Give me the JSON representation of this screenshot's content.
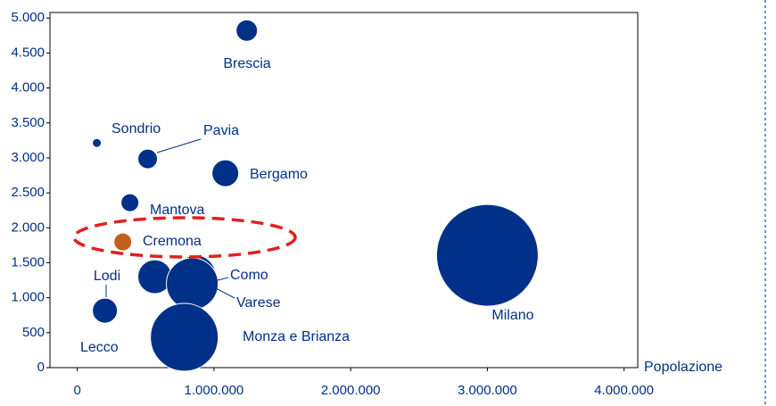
{
  "chart_data": {
    "type": "bubble",
    "x_label": "Popolazione",
    "labels": [
      "Brescia",
      "Sondrio",
      "Pavia",
      "Bergamo",
      "Mantova",
      "Cremona",
      "Lodi",
      "Lecco",
      "Como",
      "Varese",
      "Monza e Brianza",
      "Milano"
    ],
    "x": [
      1240000,
      143000,
      515000,
      1083000,
      385000,
      333000,
      202000,
      567000,
      868000,
      841000,
      783000,
      3000000
    ],
    "values": [
      4821,
      3214,
      2985,
      2781,
      2360,
      1798,
      816,
      1301,
      1327,
      1199,
      434,
      1607
    ],
    "sizes": [
      144,
      25,
      121,
      225,
      100,
      100,
      196,
      361,
      484,
      841,
      1444,
      3249
    ],
    "colors": [
      "#003087",
      "#003087",
      "#003087",
      "#003087",
      "#003087",
      "#c0601a",
      "#003087",
      "#003087",
      "#003087",
      "#003087",
      "#003087",
      "#003087"
    ],
    "xlim": [
      -200000,
      4100000
    ],
    "xticks": [
      0,
      {
        "value": 1000000,
        "label": "1.000.000"
      },
      {
        "value": 2000000,
        "label": "2.000.000"
      },
      {
        "value": 3000000,
        "label": "3.000.000"
      },
      {
        "value": 4000000,
        "label": "4.000.000"
      }
    ],
    "ylim": [
      0,
      5080
    ],
    "yticks": [
      0,
      500,
      {
        "value": 1000,
        "label": "1.000"
      },
      {
        "value": 1500,
        "label": "1.500"
      },
      {
        "value": 2000,
        "label": "2.000"
      },
      {
        "value": 2500,
        "label": "2.500"
      },
      {
        "value": 3000,
        "label": "3.000"
      },
      {
        "value": 3500,
        "label": "3.500"
      },
      {
        "value": 4000,
        "label": "4.000"
      },
      {
        "value": 4500,
        "label": "4.500"
      },
      {
        "value": 5000,
        "label": "5.000"
      }
    ]
  }
}
